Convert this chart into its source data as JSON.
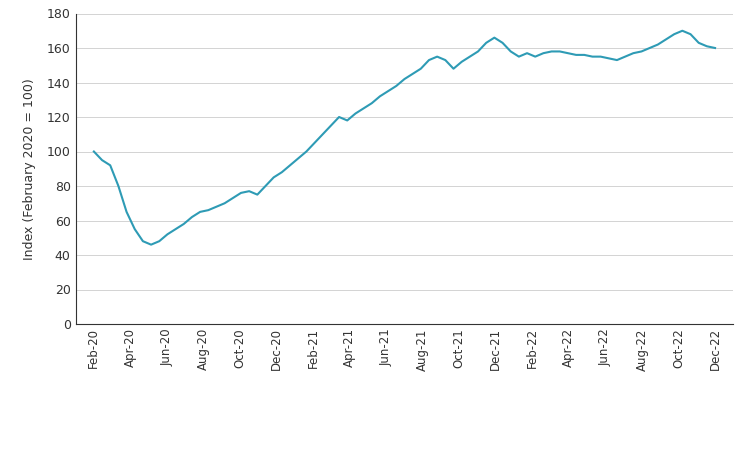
{
  "title": "",
  "ylabel": "Index (February 2020 = 100)",
  "line_color": "#2E9BB5",
  "ylim": [
    0,
    180
  ],
  "yticks": [
    0,
    20,
    40,
    60,
    80,
    100,
    120,
    140,
    160,
    180
  ],
  "xtick_labels": [
    "Feb-20",
    "Apr-20",
    "Jun-20",
    "Aug-20",
    "Oct-20",
    "Dec-20",
    "Feb-21",
    "Apr-21",
    "Jun-21",
    "Aug-21",
    "Oct-21",
    "Dec-21",
    "Feb-22",
    "Apr-22",
    "Jun-22",
    "Aug-22",
    "Oct-22",
    "Dec-22"
  ],
  "values": [
    100,
    95,
    92,
    80,
    65,
    55,
    48,
    46,
    48,
    52,
    55,
    58,
    62,
    65,
    66,
    68,
    70,
    73,
    76,
    77,
    75,
    80,
    85,
    88,
    92,
    96,
    100,
    105,
    110,
    115,
    120,
    118,
    122,
    125,
    128,
    132,
    135,
    138,
    142,
    145,
    148,
    153,
    155,
    153,
    148,
    152,
    155,
    158,
    163,
    166,
    163,
    158,
    155,
    157,
    155,
    157,
    158,
    158,
    157,
    156,
    156,
    155,
    155,
    154,
    153,
    155,
    157,
    158,
    160,
    162,
    165,
    168,
    170,
    168,
    163,
    161,
    160
  ],
  "background_color": "#ffffff",
  "spine_color": "#333333",
  "tick_color": "#333333",
  "grid_color": "#cccccc"
}
